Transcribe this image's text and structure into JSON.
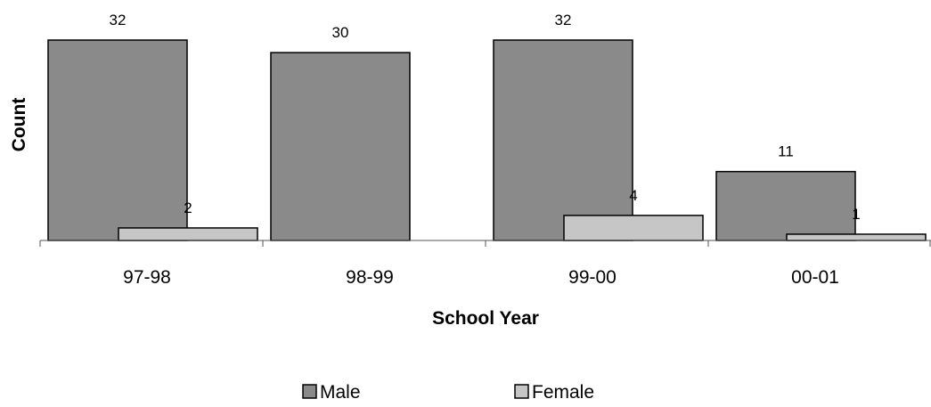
{
  "chart_data": {
    "type": "bar",
    "title": "",
    "xlabel": "School Year",
    "ylabel": "Count",
    "categories": [
      "97-98",
      "98-99",
      "99-00",
      "00-01"
    ],
    "series": [
      {
        "name": "Male",
        "values": [
          32,
          30,
          32,
          11
        ],
        "color": "#8a8a8a"
      },
      {
        "name": "Female",
        "values": [
          2,
          0,
          4,
          1
        ],
        "color": "#c6c6c6"
      }
    ],
    "data_labels": [
      [
        "32",
        "30",
        "32",
        "11"
      ],
      [
        "2",
        "",
        "4",
        "1"
      ]
    ],
    "ylim": [
      0,
      32
    ],
    "grid": false,
    "legend_position": "bottom"
  }
}
